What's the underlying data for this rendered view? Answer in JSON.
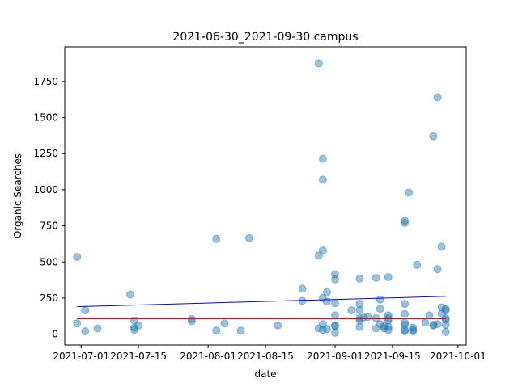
{
  "chart_data": {
    "type": "scatter",
    "title": "2021-06-30_2021-09-30 campus",
    "xlabel": "date",
    "ylabel": "Organic Searches",
    "x_axis_type": "date",
    "xlim": [
      "2021-06-27",
      "2021-10-03"
    ],
    "ylim": [
      -75,
      1990
    ],
    "x_ticks": [
      "2021-07-01",
      "2021-07-15",
      "2021-08-01",
      "2021-08-15",
      "2021-09-01",
      "2021-09-15",
      "2021-10-01"
    ],
    "y_ticks": [
      0,
      250,
      500,
      750,
      1000,
      1250,
      1500,
      1750
    ],
    "grid": false,
    "legend": "none",
    "point_color": "#1f77b4",
    "point_alpha": 0.45,
    "points": [
      {
        "x": "2021-06-30",
        "y": 535
      },
      {
        "x": "2021-06-30",
        "y": 75
      },
      {
        "x": "2021-07-02",
        "y": 165
      },
      {
        "x": "2021-07-02",
        "y": 20
      },
      {
        "x": "2021-07-05",
        "y": 40
      },
      {
        "x": "2021-07-13",
        "y": 275
      },
      {
        "x": "2021-07-14",
        "y": 95
      },
      {
        "x": "2021-07-14",
        "y": 45
      },
      {
        "x": "2021-07-14",
        "y": 30
      },
      {
        "x": "2021-07-15",
        "y": 60
      },
      {
        "x": "2021-07-28",
        "y": 105
      },
      {
        "x": "2021-07-28",
        "y": 90
      },
      {
        "x": "2021-08-03",
        "y": 660
      },
      {
        "x": "2021-08-03",
        "y": 25
      },
      {
        "x": "2021-08-05",
        "y": 75
      },
      {
        "x": "2021-08-09",
        "y": 25
      },
      {
        "x": "2021-08-11",
        "y": 665
      },
      {
        "x": "2021-08-18",
        "y": 60
      },
      {
        "x": "2021-08-24",
        "y": 315
      },
      {
        "x": "2021-08-24",
        "y": 230
      },
      {
        "x": "2021-08-28",
        "y": 1875
      },
      {
        "x": "2021-08-28",
        "y": 545
      },
      {
        "x": "2021-08-28",
        "y": 40
      },
      {
        "x": "2021-08-29",
        "y": 1215
      },
      {
        "x": "2021-08-29",
        "y": 1070
      },
      {
        "x": "2021-08-29",
        "y": 580
      },
      {
        "x": "2021-08-29",
        "y": 250
      },
      {
        "x": "2021-08-29",
        "y": 70
      },
      {
        "x": "2021-08-29",
        "y": 30
      },
      {
        "x": "2021-08-30",
        "y": 290
      },
      {
        "x": "2021-08-30",
        "y": 225
      },
      {
        "x": "2021-08-30",
        "y": 35
      },
      {
        "x": "2021-09-01",
        "y": 415
      },
      {
        "x": "2021-09-01",
        "y": 380
      },
      {
        "x": "2021-09-01",
        "y": 215
      },
      {
        "x": "2021-09-01",
        "y": 130
      },
      {
        "x": "2021-09-01",
        "y": 60
      },
      {
        "x": "2021-09-01",
        "y": 55
      },
      {
        "x": "2021-09-01",
        "y": 10
      },
      {
        "x": "2021-09-05",
        "y": 165
      },
      {
        "x": "2021-09-07",
        "y": 385
      },
      {
        "x": "2021-09-07",
        "y": 210
      },
      {
        "x": "2021-09-07",
        "y": 165
      },
      {
        "x": "2021-09-07",
        "y": 110
      },
      {
        "x": "2021-09-07",
        "y": 95
      },
      {
        "x": "2021-09-07",
        "y": 50
      },
      {
        "x": "2021-09-08",
        "y": 115
      },
      {
        "x": "2021-09-09",
        "y": 120
      },
      {
        "x": "2021-09-11",
        "y": 390
      },
      {
        "x": "2021-09-11",
        "y": 110
      },
      {
        "x": "2021-09-11",
        "y": 40
      },
      {
        "x": "2021-09-12",
        "y": 240
      },
      {
        "x": "2021-09-12",
        "y": 175
      },
      {
        "x": "2021-09-12",
        "y": 70
      },
      {
        "x": "2021-09-13",
        "y": 55
      },
      {
        "x": "2021-09-13",
        "y": 40
      },
      {
        "x": "2021-09-14",
        "y": 395
      },
      {
        "x": "2021-09-14",
        "y": 130
      },
      {
        "x": "2021-09-14",
        "y": 110
      },
      {
        "x": "2021-09-14",
        "y": 95
      },
      {
        "x": "2021-09-14",
        "y": 50
      },
      {
        "x": "2021-09-14",
        "y": 30
      },
      {
        "x": "2021-09-18",
        "y": 785
      },
      {
        "x": "2021-09-18",
        "y": 770
      },
      {
        "x": "2021-09-18",
        "y": 210
      },
      {
        "x": "2021-09-18",
        "y": 140
      },
      {
        "x": "2021-09-18",
        "y": 80
      },
      {
        "x": "2021-09-18",
        "y": 65
      },
      {
        "x": "2021-09-18",
        "y": 30
      },
      {
        "x": "2021-09-18",
        "y": 20
      },
      {
        "x": "2021-09-19",
        "y": 980
      },
      {
        "x": "2021-09-20",
        "y": 45
      },
      {
        "x": "2021-09-20",
        "y": 30
      },
      {
        "x": "2021-09-20",
        "y": 20
      },
      {
        "x": "2021-09-21",
        "y": 480
      },
      {
        "x": "2021-09-23",
        "y": 80
      },
      {
        "x": "2021-09-24",
        "y": 130
      },
      {
        "x": "2021-09-25",
        "y": 1370
      },
      {
        "x": "2021-09-25",
        "y": 65
      },
      {
        "x": "2021-09-25",
        "y": 60
      },
      {
        "x": "2021-09-26",
        "y": 1640
      },
      {
        "x": "2021-09-26",
        "y": 450
      },
      {
        "x": "2021-09-26",
        "y": 70
      },
      {
        "x": "2021-09-27",
        "y": 605
      },
      {
        "x": "2021-09-27",
        "y": 185
      },
      {
        "x": "2021-09-27",
        "y": 140
      },
      {
        "x": "2021-09-28",
        "y": 175
      },
      {
        "x": "2021-09-28",
        "y": 165
      },
      {
        "x": "2021-09-28",
        "y": 110
      },
      {
        "x": "2021-09-28",
        "y": 100
      },
      {
        "x": "2021-09-28",
        "y": 65
      },
      {
        "x": "2021-09-28",
        "y": 15
      }
    ],
    "lines": [
      {
        "color": "#0000ff",
        "x": [
          "2021-06-30",
          "2021-09-28"
        ],
        "y": [
          190,
          262
        ]
      },
      {
        "color": "#ff0000",
        "x": [
          "2021-06-30",
          "2021-09-28"
        ],
        "y": [
          107,
          107
        ]
      }
    ]
  }
}
